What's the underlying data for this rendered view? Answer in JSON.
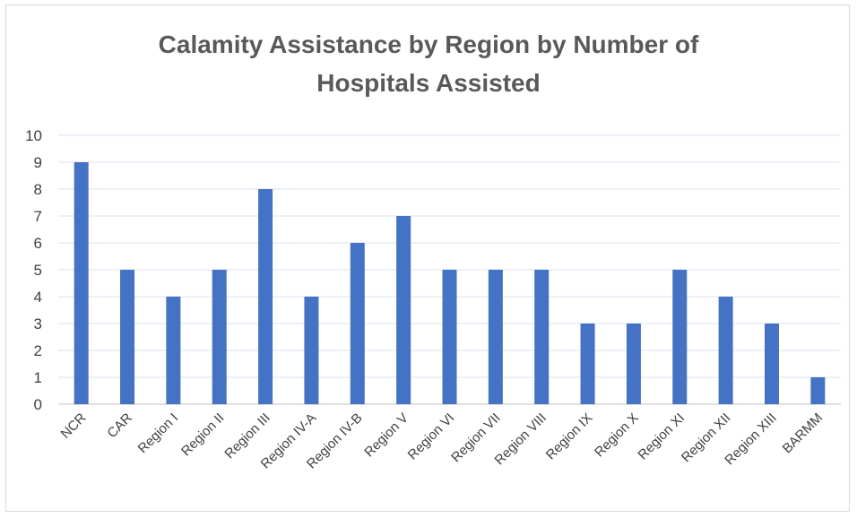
{
  "chart_data": {
    "type": "bar",
    "title_lines": [
      "Calamity Assistance by Region by Number of",
      "Hospitals Assisted"
    ],
    "categories": [
      "NCR",
      "CAR",
      "Region I",
      "Region II",
      "Region III",
      "Region IV-A",
      "Region IV-B",
      "Region V",
      "Region VI",
      "Region VII",
      "Region VIII",
      "Region IX",
      "Region X",
      "Region XI",
      "Region XII",
      "Region XIII",
      "BARMM"
    ],
    "values": [
      9,
      5,
      4,
      5,
      8,
      4,
      6,
      7,
      5,
      5,
      5,
      3,
      3,
      5,
      4,
      3,
      1
    ],
    "ylim": [
      0,
      10
    ],
    "yticks": [
      0,
      1,
      2,
      3,
      4,
      5,
      6,
      7,
      8,
      9,
      10
    ],
    "bar_color": "#4472c4",
    "grid": true,
    "grid_color": "#d9e1f2",
    "axis_color": "#bfbfbf"
  }
}
